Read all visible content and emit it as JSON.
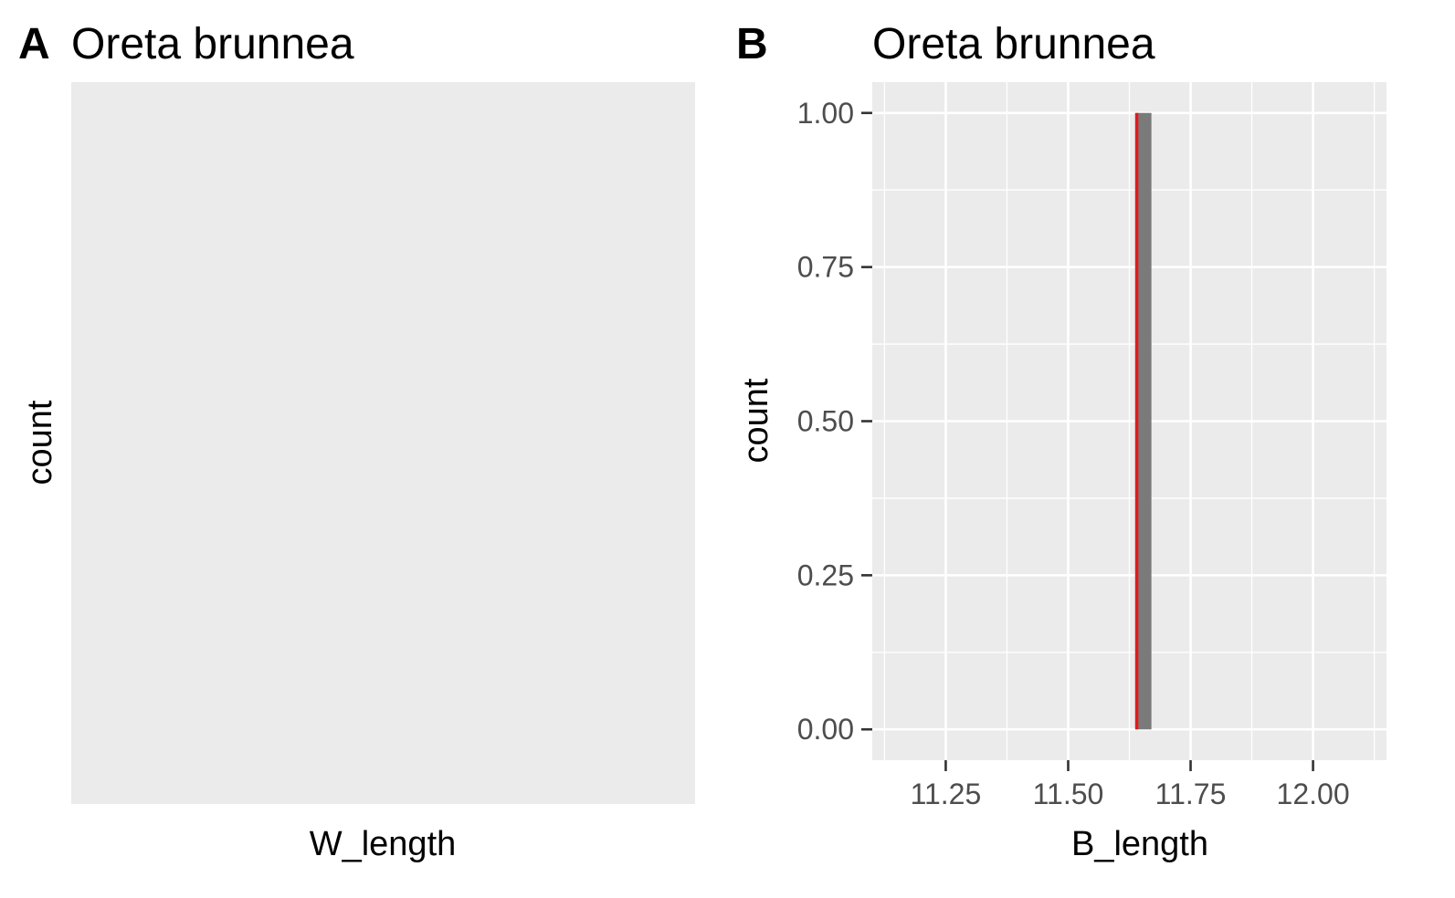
{
  "chart_data": [
    {
      "type": "bar",
      "tag": "A",
      "title": "Oreta brunnea",
      "xlabel": "W_length",
      "ylabel": "count",
      "bins": [],
      "panel_color": "#ebebeb"
    },
    {
      "type": "bar",
      "tag": "B",
      "title": "Oreta brunnea",
      "xlabel": "B_length",
      "ylabel": "count",
      "xlim": [
        11.1,
        12.15
      ],
      "ylim": [
        -0.05,
        1.05
      ],
      "xticks": [
        11.25,
        11.5,
        11.75,
        12.0
      ],
      "xtick_labels": [
        "11.25",
        "11.50",
        "11.75",
        "12.00"
      ],
      "yticks": [
        0,
        0.25,
        0.5,
        0.75,
        1.0
      ],
      "ytick_labels": [
        "0.00",
        "0.25",
        "0.50",
        "0.75",
        "1.00"
      ],
      "bins": [
        {
          "x_start": 11.64,
          "x_end": 11.67,
          "count": 1
        }
      ],
      "reference_line": {
        "x": 11.64,
        "color": "#e41a1c"
      },
      "bar_color": "#7a7a7a",
      "panel_color": "#ebebeb",
      "grid": true
    }
  ]
}
